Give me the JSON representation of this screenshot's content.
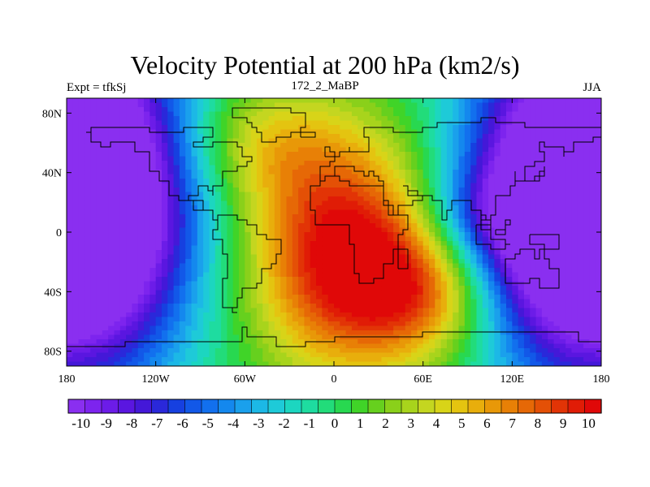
{
  "chart_data": {
    "type": "heatmap",
    "title": "Velocity Potential at 200 hPa (km2/s)",
    "left_label": "Expt = tfkSj",
    "center_label": "172_2_MaBP",
    "right_label": "JJA",
    "x_ticks": [
      {
        "value": -180,
        "label": "180"
      },
      {
        "value": -120,
        "label": "120W"
      },
      {
        "value": -60,
        "label": "60W"
      },
      {
        "value": 0,
        "label": "0"
      },
      {
        "value": 60,
        "label": "60E"
      },
      {
        "value": 120,
        "label": "120E"
      },
      {
        "value": 180,
        "label": "180"
      }
    ],
    "y_ticks": [
      {
        "value": 80,
        "label": "80N"
      },
      {
        "value": 40,
        "label": "40N"
      },
      {
        "value": 0,
        "label": "0"
      },
      {
        "value": -40,
        "label": "40S"
      },
      {
        "value": -80,
        "label": "80S"
      }
    ],
    "xlim": [
      -180,
      180
    ],
    "ylim": [
      -90,
      90
    ],
    "colorbar": {
      "min": -10.5,
      "max": 10.5,
      "labels": [
        "-10",
        "-9",
        "-8",
        "-7",
        "-6",
        "-5",
        "-4",
        "-3",
        "-2",
        "-1",
        "0",
        "1",
        "2",
        "3",
        "4",
        "5",
        "6",
        "7",
        "8",
        "9",
        "10"
      ],
      "colors": [
        "#8a2ff0",
        "#7d24ee",
        "#6c1ce8",
        "#5a16e0",
        "#4418d8",
        "#2a28da",
        "#1640e0",
        "#1258e8",
        "#1270ee",
        "#1488ee",
        "#1aa0ec",
        "#1cb8e6",
        "#1ecad8",
        "#1cd6c0",
        "#1edca0",
        "#22dc7a",
        "#28d850",
        "#40d428",
        "#66d01e",
        "#8ad01a",
        "#a8d41c",
        "#c4d620",
        "#d8d418",
        "#e4c410",
        "#e8ae0c",
        "#e89808",
        "#e88006",
        "#e66806",
        "#e45006",
        "#e23406",
        "#e01c06",
        "#e00808"
      ]
    },
    "field": {
      "description": "velocity potential anomaly, km2/s",
      "centers": [
        {
          "lon": -170,
          "lat": 20,
          "value": -11,
          "spread_lon": 55,
          "spread_lat": 80
        },
        {
          "lon": 165,
          "lat": 25,
          "value": -11,
          "spread_lon": 55,
          "spread_lat": 75
        },
        {
          "lon": 10,
          "lat": -15,
          "value": 11,
          "spread_lon": 48,
          "spread_lat": 55
        },
        {
          "lon": 60,
          "lat": -40,
          "value": 5,
          "spread_lon": 35,
          "spread_lat": 30
        },
        {
          "lon": -50,
          "lat": 60,
          "value": 4,
          "spread_lon": 40,
          "spread_lat": 30
        },
        {
          "lon": 100,
          "lat": 10,
          "value": -3,
          "spread_lon": 35,
          "spread_lat": 25
        }
      ]
    }
  }
}
